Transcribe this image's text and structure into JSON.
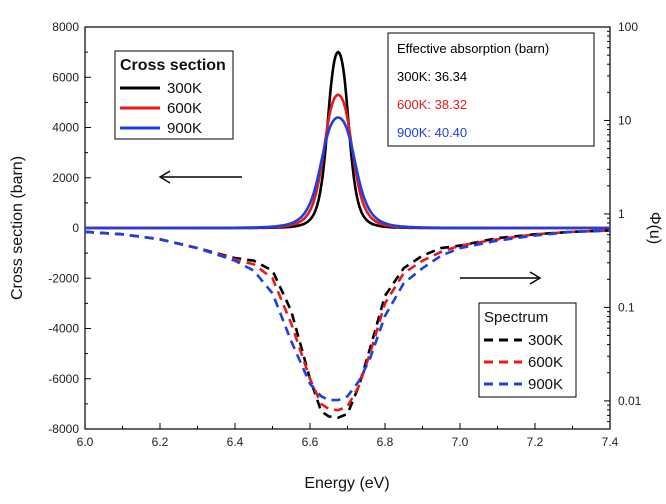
{
  "chart_data": {
    "type": "line",
    "xlabel": "Energy (eV)",
    "ylabel": "Cross section (barn)",
    "y2label": "Φ(u)",
    "xlim": [
      6.0,
      7.4
    ],
    "ylim": [
      -8000,
      8000
    ],
    "y2_range_log": [
      0.005,
      100
    ],
    "x_ticks": [
      "6.0",
      "6.2",
      "6.4",
      "6.6",
      "6.8",
      "7.0",
      "7.2",
      "7.4"
    ],
    "y_ticks": [
      "8000",
      "6000",
      "4000",
      "2000",
      "0",
      "-2000",
      "-4000",
      "-6000",
      "-8000"
    ],
    "y2_ticks": [
      "100",
      "10",
      "1",
      "0.1",
      "0.01"
    ],
    "colors": {
      "300K": "#000000",
      "600K": "#e8191b",
      "900K": "#1f3fe0"
    },
    "cross_section_series": [
      {
        "name": "300K",
        "peak": 7000,
        "center": 6.675,
        "width": 0.0316
      },
      {
        "name": "600K",
        "peak": 5300,
        "center": 6.675,
        "width": 0.0427
      },
      {
        "name": "900K",
        "peak": 4400,
        "center": 6.675,
        "width": 0.0513
      }
    ],
    "spectrum_series": [
      {
        "name": "300K",
        "x": [
          6.0,
          6.1,
          6.2,
          6.3,
          6.4,
          6.45,
          6.5,
          6.55,
          6.6,
          6.63,
          6.65,
          6.675,
          6.7,
          6.73,
          6.76,
          6.8,
          6.85,
          6.9,
          6.95,
          7.0,
          7.1,
          7.2,
          7.3,
          7.4
        ],
        "y": [
          -150,
          -250,
          -450,
          -800,
          -1200,
          -1300,
          -1700,
          -3300,
          -6000,
          -7300,
          -7500,
          -7550,
          -7400,
          -6300,
          -4800,
          -2700,
          -1600,
          -1100,
          -800,
          -700,
          -400,
          -250,
          -150,
          -100
        ]
      },
      {
        "name": "600K",
        "x": [
          6.0,
          6.1,
          6.2,
          6.3,
          6.4,
          6.45,
          6.5,
          6.55,
          6.6,
          6.63,
          6.65,
          6.675,
          6.7,
          6.73,
          6.76,
          6.8,
          6.85,
          6.9,
          6.95,
          7.0,
          7.1,
          7.2,
          7.3,
          7.4
        ],
        "y": [
          -150,
          -250,
          -450,
          -800,
          -1250,
          -1450,
          -2000,
          -3800,
          -6000,
          -7000,
          -7200,
          -7250,
          -7100,
          -6300,
          -5000,
          -3000,
          -1800,
          -1300,
          -950,
          -700,
          -450,
          -250,
          -150,
          -100
        ]
      },
      {
        "name": "900K",
        "x": [
          6.0,
          6.1,
          6.2,
          6.3,
          6.4,
          6.45,
          6.5,
          6.55,
          6.6,
          6.63,
          6.65,
          6.675,
          6.7,
          6.73,
          6.76,
          6.8,
          6.85,
          6.9,
          6.95,
          7.0,
          7.1,
          7.2,
          7.3,
          7.4
        ],
        "y": [
          -150,
          -250,
          -450,
          -800,
          -1300,
          -1700,
          -2600,
          -4500,
          -6200,
          -6700,
          -6850,
          -6850,
          -6700,
          -6100,
          -5200,
          -3500,
          -2200,
          -1600,
          -1100,
          -800,
          -500,
          -300,
          -150,
          -100
        ]
      }
    ],
    "legend_cross_section": {
      "title": "Cross section",
      "entries": [
        "300K",
        "600K",
        "900K"
      ],
      "location": "top-left"
    },
    "legend_spectrum": {
      "title": "Spectrum",
      "entries": [
        "300K",
        "600K",
        "900K"
      ],
      "location": "bottom-right"
    },
    "absorption_box": {
      "title": "Effective absorption (barn)",
      "entries": [
        {
          "label": "300K: 36.34",
          "color": "#000000"
        },
        {
          "label": "600K: 38.32",
          "color": "#e8191b"
        },
        {
          "label": "900K: 40.40",
          "color": "#1f3fe0"
        }
      ],
      "location": "top-right"
    },
    "arrows": [
      {
        "direction": "left",
        "meaning": "cross section axis"
      },
      {
        "direction": "right",
        "meaning": "spectrum axis"
      }
    ]
  }
}
